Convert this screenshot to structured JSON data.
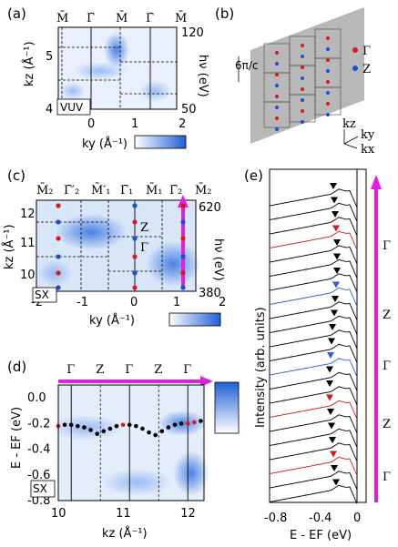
{
  "panel_a": {
    "label": "(a)",
    "top_labels": [
      "M̄",
      "Γ̄",
      "M̄",
      "Γ̄",
      "M̄"
    ],
    "yticks": [
      "5",
      "4"
    ],
    "ylabel": "kz (Å⁻¹)",
    "rticks": [
      "120",
      "50"
    ],
    "rlabel": "hν (eV)",
    "xticks": [
      "0",
      "1",
      "2"
    ],
    "xlabel": "ky (Å⁻¹)",
    "tag": "VUV"
  },
  "panel_b": {
    "label": "(b)",
    "legend": [
      {
        "sym": "Γ",
        "color": "#d41a1a"
      },
      {
        "sym": "Z",
        "color": "#1a4fd4"
      }
    ],
    "period_label": "6π/c",
    "axes": [
      "kz",
      "ky",
      "kx"
    ]
  },
  "panel_c": {
    "label": "(c)",
    "top_labels": [
      "M̄₂",
      "Γ̄′₂",
      "M̄′₁",
      "Γ̄₁",
      "M̄₁",
      "Γ̄₂",
      "M̄₂"
    ],
    "yticks": [
      "12",
      "11",
      "10"
    ],
    "ylabel": "kz (Å⁻¹)",
    "rticks": [
      "620",
      "380"
    ],
    "rlabel": "hν (eV)",
    "xticks": [
      "-2",
      "-1",
      "0",
      "1",
      "2"
    ],
    "xlabel": "ky (Å⁻¹)",
    "tag": "SX",
    "inner": [
      "Z",
      "Γ"
    ]
  },
  "panel_d": {
    "label": "(d)",
    "top_labels": [
      "Γ",
      "Z",
      "Γ",
      "Z",
      "Γ"
    ],
    "yticks": [
      "0.0",
      "-0.2",
      "-0.4",
      "-0.6",
      "-0.8"
    ],
    "ylabel": "E - EF (eV)",
    "xticks": [
      "10",
      "11",
      "12"
    ],
    "xlabel": "kz (Å⁻¹)",
    "tag": "SX"
  },
  "panel_e": {
    "label": "(e)",
    "ylabel": "Intensity (arb. units)",
    "xticks": [
      "-0.8",
      "-0.4",
      "0"
    ],
    "xlabel": "E - EF (eV)",
    "right_labels": [
      "Γ",
      "Z",
      "Γ",
      "Z",
      "Γ"
    ]
  },
  "chart_data": [
    {
      "type": "scatter",
      "title": "",
      "xlabel": "kz (Å⁻¹)",
      "ylabel": "E - EF (eV)",
      "xlim": [
        10,
        12.25
      ],
      "ylim": [
        -0.8,
        0.1
      ],
      "series": [
        {
          "x": [
            10.0,
            10.1,
            10.2,
            10.3,
            10.4,
            10.5,
            10.6,
            10.7,
            10.8,
            10.9,
            11.0,
            11.1,
            11.2,
            11.3,
            11.4,
            11.5,
            11.6,
            11.7,
            11.8,
            11.9,
            12.0,
            12.1,
            12.2
          ],
          "values": [
            -0.22,
            -0.21,
            -0.21,
            -0.22,
            -0.23,
            -0.25,
            -0.28,
            -0.26,
            -0.24,
            -0.22,
            -0.21,
            -0.21,
            -0.22,
            -0.24,
            -0.27,
            -0.29,
            -0.26,
            -0.23,
            -0.21,
            -0.2,
            -0.2,
            -0.19,
            -0.18
          ]
        }
      ]
    }
  ]
}
